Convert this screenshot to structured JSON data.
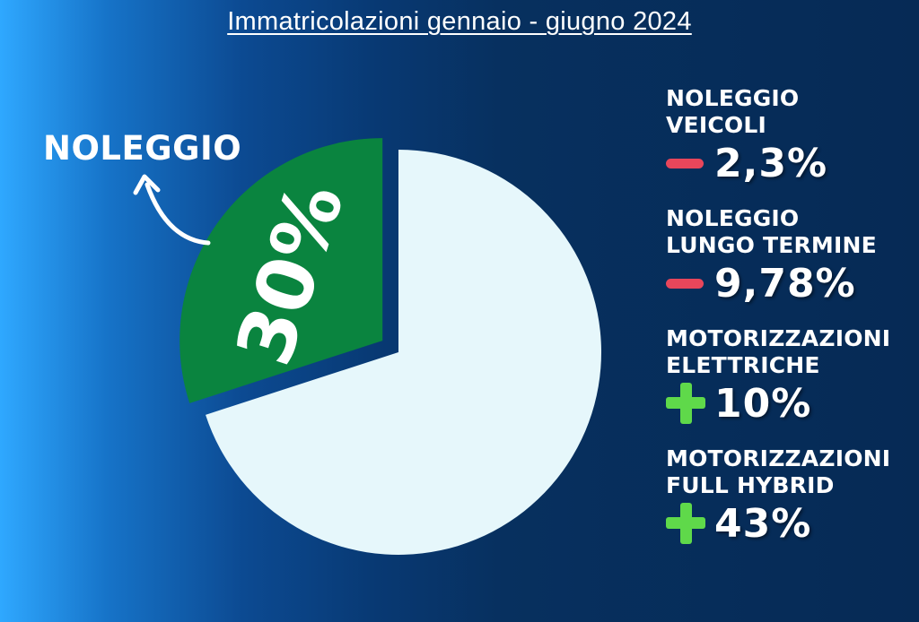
{
  "title": "Immatricolazioni gennaio - giugno 2024",
  "callout": {
    "label": "NOLEGGIO"
  },
  "colors": {
    "slice_highlight": "#0a843f",
    "slice_rest": "#e6f7fb",
    "minus": "#e8465b",
    "plus": "#5fd94a"
  },
  "chart_data": {
    "type": "pie",
    "title": "Immatricolazioni gennaio - giugno 2024",
    "slices": [
      {
        "name": "NOLEGGIO",
        "value": 30,
        "label": "30%",
        "exploded": true
      },
      {
        "name": "",
        "value": 70,
        "label": ""
      }
    ],
    "start_angle_deg": 0,
    "direction": "counterclockwise"
  },
  "stats": [
    {
      "title": "NOLEGGIO\nVEICOLI",
      "sign": "minus",
      "value": "2,3%"
    },
    {
      "title": "NOLEGGIO\nLUNGO TERMINE",
      "sign": "minus",
      "value": "9,78%"
    },
    {
      "title": "MOTORIZZAZIONI\nELETTRICHE",
      "sign": "plus",
      "value": "10%"
    },
    {
      "title": "MOTORIZZAZIONI\nFULL HYBRID",
      "sign": "plus",
      "value": "43%"
    }
  ]
}
